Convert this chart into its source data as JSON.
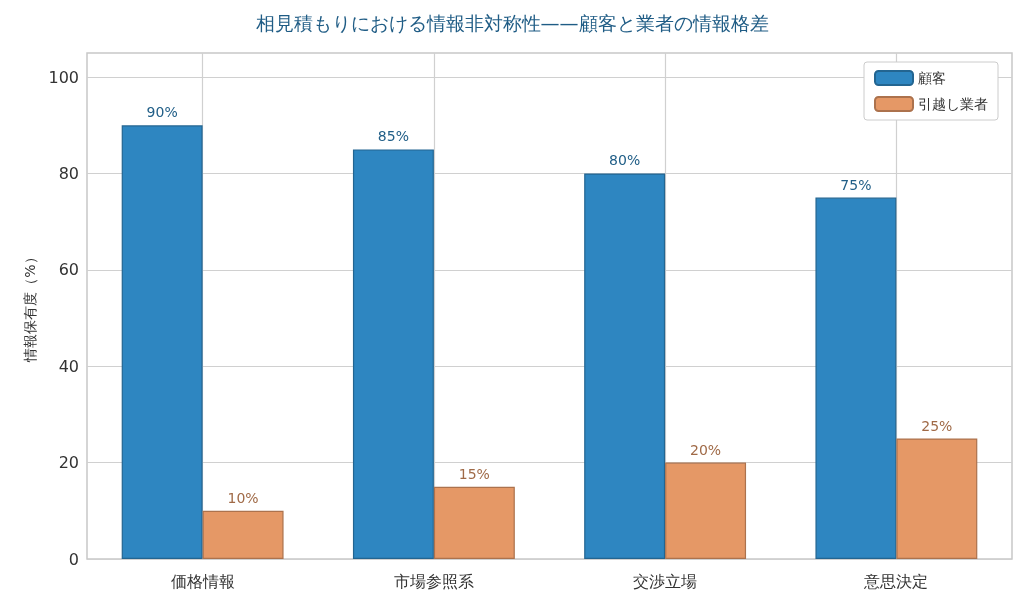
{
  "chart_data": {
    "type": "bar",
    "title": "相見積もりにおける情報非対称性——顧客と業者の情報格差",
    "ylabel": "情報保有度（%）",
    "categories": [
      "価格情報",
      "市場参照系",
      "交渉立場",
      "意思決定"
    ],
    "series": [
      {
        "name": "顧客",
        "color": "#2e86c1",
        "values": [
          90,
          85,
          80,
          75
        ],
        "value_labels": [
          "90%",
          "85%",
          "80%",
          "75%"
        ]
      },
      {
        "name": "引越し業者",
        "color": "#e59866",
        "values": [
          10,
          15,
          20,
          25
        ],
        "value_labels": [
          "10%",
          "15%",
          "20%",
          "25%"
        ]
      }
    ],
    "ylim": [
      0,
      105
    ],
    "yticks": [
      0,
      20,
      40,
      60,
      80,
      100
    ],
    "grid": true,
    "legend": "top right"
  }
}
